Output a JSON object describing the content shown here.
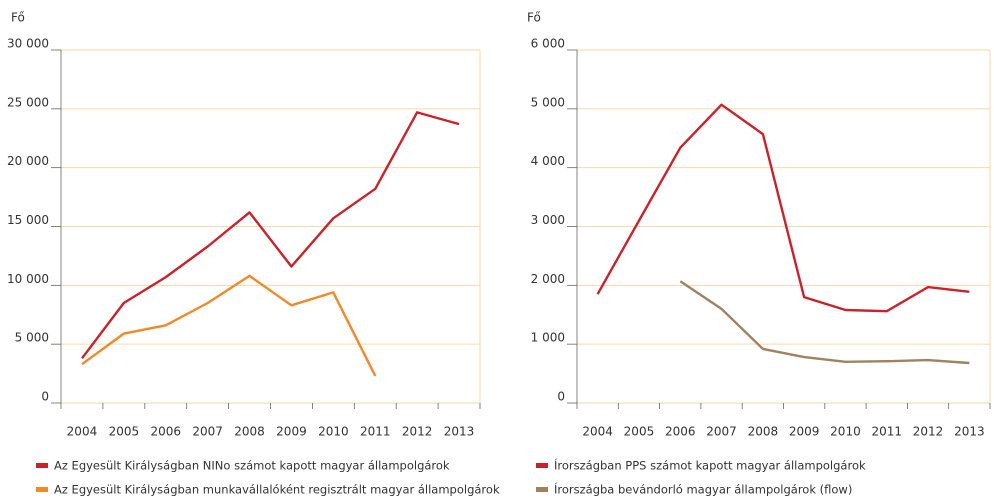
{
  "chart_data": [
    {
      "type": "line",
      "ylabel": "Fő",
      "categories": [
        "2004",
        "2005",
        "2006",
        "2007",
        "2008",
        "2009",
        "2010",
        "2011",
        "2012",
        "2013"
      ],
      "series": [
        {
          "name": "Az Egyesült Királyságban NINo számot kapott magyar állampolgárok",
          "color": "#c8232c",
          "values": [
            3800,
            8500,
            10700,
            13300,
            16200,
            11600,
            15700,
            18200,
            24700,
            23700
          ]
        },
        {
          "name": "Az Egyesült Királyságban munkavállalóként regisztrált magyar állampolgárok",
          "color": "#f0892a",
          "values": [
            3300,
            5900,
            6600,
            8500,
            10800,
            8300,
            9400,
            2300,
            null,
            null
          ]
        }
      ],
      "ylim": [
        0,
        30000
      ],
      "yticks": [
        0,
        {
          "value": 5000,
          "label": "5 000"
        },
        {
          "value": 10000,
          "label": "10 000"
        },
        {
          "value": 15000,
          "label": "15 000"
        },
        {
          "value": 20000,
          "label": "20 000"
        },
        {
          "value": 25000,
          "label": "25 000"
        },
        {
          "value": 30000,
          "label": "30 000"
        }
      ],
      "grid": true
    },
    {
      "type": "line",
      "ylabel": "Fő",
      "categories": [
        "2004",
        "2005",
        "2006",
        "2007",
        "2008",
        "2009",
        "2010",
        "2011",
        "2012",
        "2013"
      ],
      "series": [
        {
          "name": "Írországban PPS számot kapott magyar állampolgárok",
          "color": "#c8232c",
          "values": [
            1850,
            3100,
            4340,
            5070,
            4570,
            1800,
            1580,
            1560,
            1970,
            1890
          ]
        },
        {
          "name": "Írországba bevándorló magyar állampolgárok (flow)",
          "color": "#a08262",
          "values": [
            null,
            null,
            2070,
            1600,
            920,
            780,
            700,
            710,
            730,
            680
          ]
        }
      ],
      "ylim": [
        0,
        6000
      ],
      "yticks": [
        0,
        {
          "value": 1000,
          "label": "1 000"
        },
        {
          "value": 2000,
          "label": "2 000"
        },
        {
          "value": 3000,
          "label": "3 000"
        },
        {
          "value": 4000,
          "label": "4 000"
        },
        {
          "value": 5000,
          "label": "5 000"
        },
        {
          "value": 6000,
          "label": "6 000"
        }
      ],
      "grid": true
    }
  ]
}
